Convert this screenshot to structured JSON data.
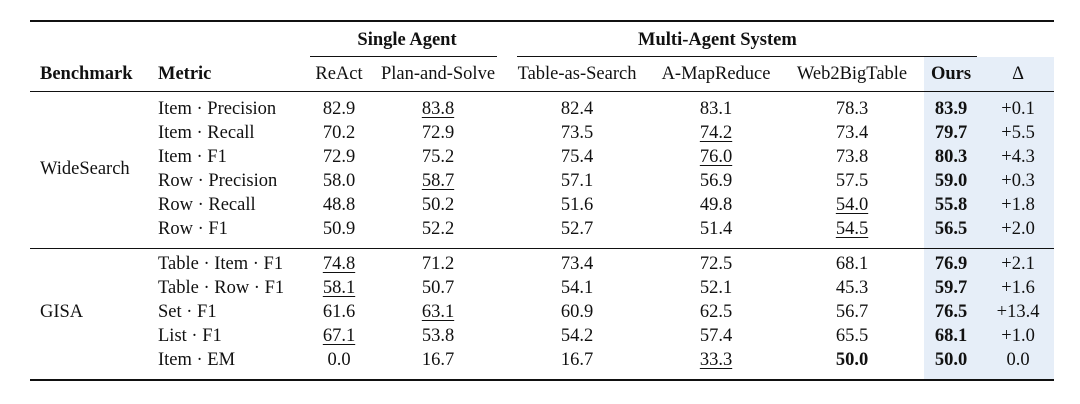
{
  "table": {
    "group_headers": {
      "single_agent": "Single Agent",
      "multi_agent": "Multi-Agent System"
    },
    "columns": {
      "benchmark": "Benchmark",
      "metric": "Metric",
      "react": "ReAct",
      "plan_and_solve": "Plan-and-Solve",
      "table_as_search": "Table-as-Search",
      "a_mapreduce": "A-MapReduce",
      "web2bigtable": "Web2BigTable",
      "ours": "Ours",
      "delta": "Δ"
    },
    "highlight_color": "#e6eef8",
    "formatting_note": "bold = best, underline = second best",
    "benchmarks": [
      {
        "name": "WideSearch",
        "rows": [
          {
            "metric": "Item · Precision",
            "react": "82.9",
            "plan_and_solve": "83.8",
            "table_as_search": "82.4",
            "a_mapreduce": "83.1",
            "web2bigtable": "78.3",
            "ours": "83.9",
            "delta": "+0.1",
            "bold": [],
            "underline": [
              "plan_and_solve"
            ]
          },
          {
            "metric": "Item · Recall",
            "react": "70.2",
            "plan_and_solve": "72.9",
            "table_as_search": "73.5",
            "a_mapreduce": "74.2",
            "web2bigtable": "73.4",
            "ours": "79.7",
            "delta": "+5.5",
            "bold": [],
            "underline": [
              "a_mapreduce"
            ]
          },
          {
            "metric": "Item · F1",
            "react": "72.9",
            "plan_and_solve": "75.2",
            "table_as_search": "75.4",
            "a_mapreduce": "76.0",
            "web2bigtable": "73.8",
            "ours": "80.3",
            "delta": "+4.3",
            "bold": [],
            "underline": [
              "a_mapreduce"
            ]
          },
          {
            "metric": "Row · Precision",
            "react": "58.0",
            "plan_and_solve": "58.7",
            "table_as_search": "57.1",
            "a_mapreduce": "56.9",
            "web2bigtable": "57.5",
            "ours": "59.0",
            "delta": "+0.3",
            "bold": [],
            "underline": [
              "plan_and_solve"
            ]
          },
          {
            "metric": "Row · Recall",
            "react": "48.8",
            "plan_and_solve": "50.2",
            "table_as_search": "51.6",
            "a_mapreduce": "49.8",
            "web2bigtable": "54.0",
            "ours": "55.8",
            "delta": "+1.8",
            "bold": [],
            "underline": [
              "web2bigtable"
            ]
          },
          {
            "metric": "Row · F1",
            "react": "50.9",
            "plan_and_solve": "52.2",
            "table_as_search": "52.7",
            "a_mapreduce": "51.4",
            "web2bigtable": "54.5",
            "ours": "56.5",
            "delta": "+2.0",
            "bold": [],
            "underline": [
              "web2bigtable"
            ]
          }
        ]
      },
      {
        "name": "GISA",
        "rows": [
          {
            "metric": "Table · Item · F1",
            "react": "74.8",
            "plan_and_solve": "71.2",
            "table_as_search": "73.4",
            "a_mapreduce": "72.5",
            "web2bigtable": "68.1",
            "ours": "76.9",
            "delta": "+2.1",
            "bold": [],
            "underline": [
              "react"
            ]
          },
          {
            "metric": "Table · Row · F1",
            "react": "58.1",
            "plan_and_solve": "50.7",
            "table_as_search": "54.1",
            "a_mapreduce": "52.1",
            "web2bigtable": "45.3",
            "ours": "59.7",
            "delta": "+1.6",
            "bold": [],
            "underline": [
              "react"
            ]
          },
          {
            "metric": "Set · F1",
            "react": "61.6",
            "plan_and_solve": "63.1",
            "table_as_search": "60.9",
            "a_mapreduce": "62.5",
            "web2bigtable": "56.7",
            "ours": "76.5",
            "delta": "+13.4",
            "bold": [],
            "underline": [
              "plan_and_solve"
            ]
          },
          {
            "metric": "List · F1",
            "react": "67.1",
            "plan_and_solve": "53.8",
            "table_as_search": "54.2",
            "a_mapreduce": "57.4",
            "web2bigtable": "65.5",
            "ours": "68.1",
            "delta": "+1.0",
            "bold": [],
            "underline": [
              "react"
            ]
          },
          {
            "metric": "Item · EM",
            "react": "0.0",
            "plan_and_solve": "16.7",
            "table_as_search": "16.7",
            "a_mapreduce": "33.3",
            "web2bigtable": "50.0",
            "ours": "50.0",
            "delta": "0.0",
            "bold": [
              "web2bigtable"
            ],
            "underline": [
              "a_mapreduce"
            ]
          }
        ]
      }
    ]
  }
}
